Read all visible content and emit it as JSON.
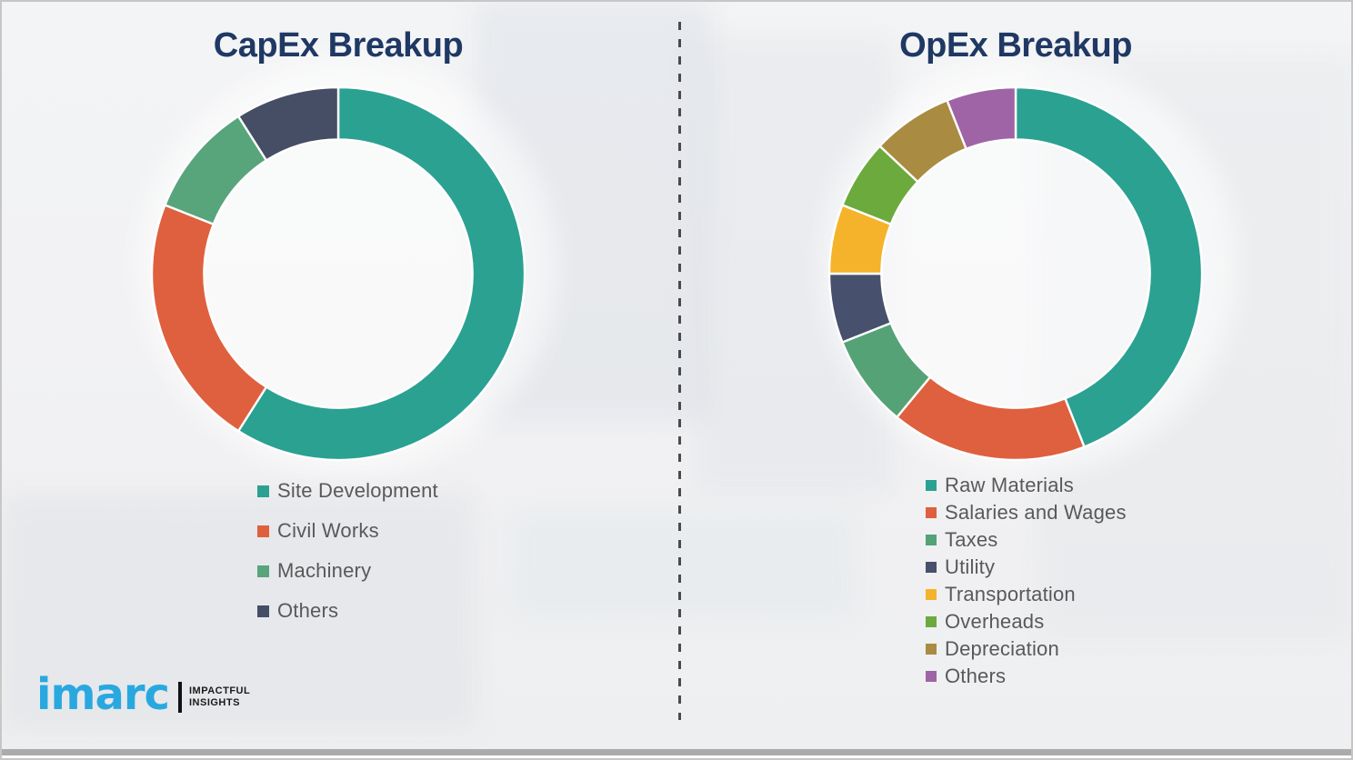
{
  "chart_data": [
    {
      "type": "pie",
      "variant": "donut",
      "title": "CapEx Breakup",
      "categories": [
        "Site Development",
        "Civil Works",
        "Machinery",
        "Others"
      ],
      "values": [
        59,
        22,
        10,
        9
      ],
      "unit": "percent-share",
      "colors": [
        "#2BA192",
        "#DF603E",
        "#58A57C",
        "#464E66"
      ],
      "inner_radius_ratio": 0.72,
      "start_angle_deg": 0,
      "direction": "clockwise",
      "legend_position": "below-left",
      "data_labels": false
    },
    {
      "type": "pie",
      "variant": "donut",
      "title": "OpEx Breakup",
      "categories": [
        "Raw Materials",
        "Salaries and Wages",
        "Taxes",
        "Utility",
        "Transportation",
        "Overheads",
        "Depreciation",
        "Others"
      ],
      "values": [
        44,
        17,
        8,
        6,
        6,
        6,
        7,
        6
      ],
      "unit": "percent-share",
      "colors": [
        "#2BA192",
        "#DF603E",
        "#55A277",
        "#47506C",
        "#F5B32B",
        "#6CAA3E",
        "#A98C42",
        "#9F64A6"
      ],
      "inner_radius_ratio": 0.72,
      "start_angle_deg": 0,
      "direction": "clockwise",
      "legend_position": "below-left",
      "data_labels": false
    }
  ],
  "logo": {
    "brand": "imarc",
    "tagline_line1": "IMPACTFUL",
    "tagline_line2": "INSIGHTS"
  },
  "colors": {
    "title_text": "#1F3864",
    "legend_text": "#595959",
    "brand_blue": "#29A8E0",
    "divider": "#4A4A4A",
    "background": "#F2F2F3",
    "segment_gap": "#FFFFFF"
  }
}
